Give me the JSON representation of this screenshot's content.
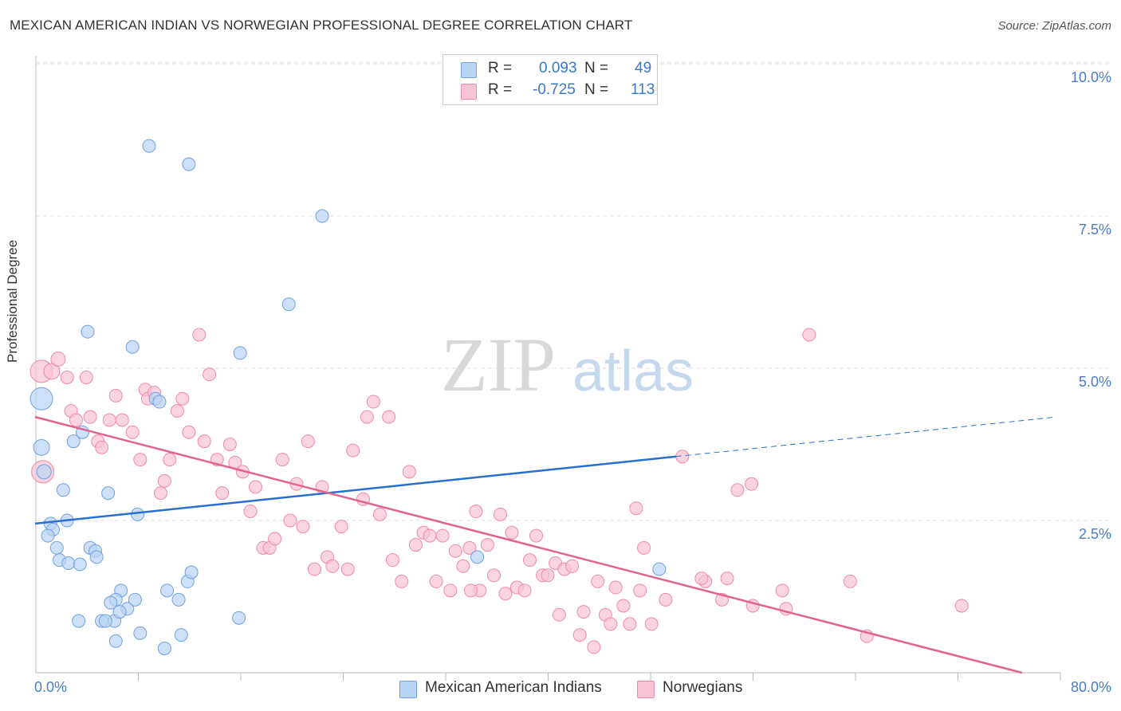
{
  "title": "MEXICAN AMERICAN INDIAN VS NORWEGIAN PROFESSIONAL DEGREE CORRELATION CHART",
  "source": "Source: ZipAtlas.com",
  "watermark": {
    "zip": "ZIP",
    "atlas": "atlas"
  },
  "legend": {
    "r_label": "R =",
    "n_label": "N =",
    "series1": {
      "r": "0.093",
      "n": "49",
      "color": "#a9c8f0"
    },
    "series2": {
      "r": "-0.725",
      "n": "113",
      "color": "#f6b8cc"
    }
  },
  "chart_data": {
    "type": "scatter",
    "title": "MEXICAN AMERICAN INDIAN VS NORWEGIAN PROFESSIONAL DEGREE CORRELATION CHART",
    "xlabel": "",
    "ylabel": "Professional Degree",
    "xlim": [
      0,
      80
    ],
    "ylim": [
      0,
      10.5
    ],
    "x_tick_labels": [
      "0.0%",
      "80.0%"
    ],
    "y_tick_labels": [
      "2.5%",
      "5.0%",
      "7.5%",
      "10.0%"
    ],
    "y_ticks": [
      2.5,
      5.0,
      7.5,
      10.0
    ],
    "grid": "horizontal dashed",
    "legend_position": "top-center",
    "series": [
      {
        "name": "Mexican American Indians",
        "color": "#6fa1e0",
        "fill": "#b9d3f3",
        "trend": {
          "x0": 0,
          "y0": 2.45,
          "x1": 50,
          "y1": 3.55,
          "dash_to_x": 80,
          "dash_to_y": 4.2
        },
        "points": [
          [
            0.5,
            4.5,
            14
          ],
          [
            0.5,
            3.7,
            10
          ],
          [
            0.7,
            3.3,
            9
          ],
          [
            1.2,
            2.45,
            8
          ],
          [
            1.4,
            2.35,
            8
          ],
          [
            1.0,
            2.25,
            8
          ],
          [
            1.7,
            2.05,
            8
          ],
          [
            1.9,
            1.85,
            8
          ],
          [
            2.6,
            1.8,
            8
          ],
          [
            3.5,
            1.78,
            8
          ],
          [
            2.2,
            3.0,
            8
          ],
          [
            2.5,
            2.5,
            8
          ],
          [
            3.0,
            3.8,
            8
          ],
          [
            3.7,
            3.95,
            8
          ],
          [
            4.1,
            5.6,
            8
          ],
          [
            4.3,
            2.05,
            8
          ],
          [
            4.7,
            2.0,
            8
          ],
          [
            4.8,
            1.9,
            8
          ],
          [
            5.7,
            2.95,
            8
          ],
          [
            6.7,
            1.35,
            8
          ],
          [
            6.3,
            1.2,
            8
          ],
          [
            5.9,
            1.15,
            8
          ],
          [
            6.2,
            0.85,
            8
          ],
          [
            7.2,
            1.05,
            8
          ],
          [
            7.8,
            1.2,
            8
          ],
          [
            8.2,
            0.65,
            8
          ],
          [
            8.0,
            2.6,
            8
          ],
          [
            7.6,
            5.35,
            8
          ],
          [
            8.9,
            8.65,
            8
          ],
          [
            9.4,
            4.5,
            8
          ],
          [
            9.7,
            4.45,
            8
          ],
          [
            10.3,
            1.35,
            8
          ],
          [
            11.2,
            1.2,
            8
          ],
          [
            11.4,
            0.62,
            8
          ],
          [
            11.9,
            1.5,
            8
          ],
          [
            12.2,
            1.65,
            8
          ],
          [
            12.0,
            8.35,
            8
          ],
          [
            16.0,
            5.25,
            8
          ],
          [
            15.9,
            0.9,
            8
          ],
          [
            19.8,
            6.05,
            8
          ],
          [
            22.4,
            7.5,
            8
          ],
          [
            34.5,
            1.9,
            8
          ],
          [
            48.7,
            1.7,
            8
          ],
          [
            3.4,
            0.85,
            8
          ],
          [
            5.2,
            0.85,
            8
          ],
          [
            5.5,
            0.85,
            8
          ],
          [
            6.3,
            0.52,
            8
          ],
          [
            10.1,
            0.4,
            8
          ],
          [
            6.6,
            1.0,
            8
          ]
        ]
      },
      {
        "name": "Norwegians",
        "color": "#ee8aaa",
        "fill": "#f8c3d4",
        "trend": {
          "x0": 0,
          "y0": 4.2,
          "x1": 77,
          "y1": 0.0
        },
        "points": [
          [
            0.5,
            4.95,
            14
          ],
          [
            0.6,
            3.3,
            14
          ],
          [
            1.3,
            4.95,
            10
          ],
          [
            1.8,
            5.15,
            9
          ],
          [
            2.5,
            4.85,
            8
          ],
          [
            2.8,
            4.3,
            8
          ],
          [
            3.2,
            4.15,
            8
          ],
          [
            4.0,
            4.85,
            8
          ],
          [
            4.3,
            4.2,
            8
          ],
          [
            4.9,
            3.8,
            8
          ],
          [
            5.2,
            3.7,
            8
          ],
          [
            5.8,
            4.15,
            8
          ],
          [
            6.3,
            4.55,
            8
          ],
          [
            6.8,
            4.15,
            8
          ],
          [
            7.6,
            3.95,
            8
          ],
          [
            8.2,
            3.5,
            8
          ],
          [
            8.6,
            4.65,
            8
          ],
          [
            8.8,
            4.5,
            8
          ],
          [
            9.3,
            4.6,
            8
          ],
          [
            9.8,
            2.95,
            8
          ],
          [
            10.1,
            3.15,
            8
          ],
          [
            10.5,
            3.5,
            8
          ],
          [
            11.1,
            4.3,
            8
          ],
          [
            11.5,
            4.5,
            8
          ],
          [
            12.0,
            3.95,
            8
          ],
          [
            12.8,
            5.55,
            8
          ],
          [
            13.2,
            3.8,
            8
          ],
          [
            13.6,
            4.9,
            8
          ],
          [
            14.2,
            3.5,
            8
          ],
          [
            14.6,
            2.95,
            8
          ],
          [
            15.2,
            3.75,
            8
          ],
          [
            15.6,
            3.45,
            8
          ],
          [
            16.2,
            3.3,
            8
          ],
          [
            16.8,
            2.65,
            8
          ],
          [
            17.2,
            3.05,
            8
          ],
          [
            17.8,
            2.05,
            8
          ],
          [
            18.3,
            2.05,
            8
          ],
          [
            18.7,
            2.2,
            8
          ],
          [
            19.3,
            3.5,
            8
          ],
          [
            19.9,
            2.5,
            8
          ],
          [
            20.4,
            3.1,
            8
          ],
          [
            20.9,
            2.4,
            8
          ],
          [
            21.3,
            3.8,
            8
          ],
          [
            21.8,
            1.7,
            8
          ],
          [
            22.4,
            3.05,
            8
          ],
          [
            22.8,
            1.9,
            8
          ],
          [
            23.2,
            1.75,
            8
          ],
          [
            23.9,
            2.4,
            8
          ],
          [
            24.4,
            1.7,
            8
          ],
          [
            24.8,
            3.65,
            8
          ],
          [
            25.6,
            2.85,
            8
          ],
          [
            25.9,
            4.2,
            8
          ],
          [
            26.4,
            4.45,
            8
          ],
          [
            26.9,
            2.6,
            8
          ],
          [
            27.6,
            4.2,
            8
          ],
          [
            27.9,
            1.85,
            8
          ],
          [
            28.6,
            1.5,
            8
          ],
          [
            29.2,
            3.3,
            8
          ],
          [
            29.7,
            2.1,
            8
          ],
          [
            30.3,
            2.3,
            8
          ],
          [
            30.8,
            2.25,
            8
          ],
          [
            31.3,
            1.5,
            8
          ],
          [
            31.8,
            2.25,
            8
          ],
          [
            32.4,
            1.35,
            8
          ],
          [
            32.8,
            2.0,
            8
          ],
          [
            33.4,
            1.75,
            8
          ],
          [
            33.9,
            2.05,
            8
          ],
          [
            34.4,
            2.65,
            8
          ],
          [
            34.7,
            1.35,
            8
          ],
          [
            35.3,
            2.1,
            8
          ],
          [
            35.8,
            1.6,
            8
          ],
          [
            36.3,
            2.6,
            8
          ],
          [
            36.7,
            1.3,
            8
          ],
          [
            37.2,
            2.3,
            8
          ],
          [
            37.6,
            1.4,
            8
          ],
          [
            38.2,
            1.35,
            8
          ],
          [
            38.6,
            1.85,
            8
          ],
          [
            39.1,
            2.25,
            8
          ],
          [
            39.6,
            1.6,
            8
          ],
          [
            40.0,
            1.6,
            8
          ],
          [
            40.6,
            1.8,
            8
          ],
          [
            40.9,
            0.95,
            8
          ],
          [
            41.3,
            1.7,
            8
          ],
          [
            41.9,
            1.75,
            8
          ],
          [
            42.5,
            0.62,
            8
          ],
          [
            42.8,
            1.0,
            8
          ],
          [
            43.6,
            0.42,
            8
          ],
          [
            43.9,
            1.5,
            8
          ],
          [
            44.5,
            0.95,
            8
          ],
          [
            44.9,
            0.8,
            8
          ],
          [
            45.3,
            1.4,
            8
          ],
          [
            45.9,
            1.1,
            8
          ],
          [
            46.4,
            0.8,
            8
          ],
          [
            46.9,
            2.7,
            8
          ],
          [
            47.2,
            1.35,
            8
          ],
          [
            47.5,
            2.05,
            8
          ],
          [
            48.1,
            0.8,
            8
          ],
          [
            49.2,
            1.2,
            8
          ],
          [
            50.5,
            3.55,
            8
          ],
          [
            52.3,
            1.5,
            8
          ],
          [
            53.6,
            1.2,
            8
          ],
          [
            54.0,
            1.55,
            8
          ],
          [
            54.8,
            3.0,
            8
          ],
          [
            55.9,
            3.1,
            8
          ],
          [
            58.6,
            1.05,
            8
          ],
          [
            58.3,
            1.35,
            8
          ],
          [
            60.4,
            5.55,
            8
          ],
          [
            63.6,
            1.5,
            8
          ],
          [
            64.9,
            0.6,
            8
          ],
          [
            72.3,
            1.1,
            8
          ],
          [
            56.0,
            1.1,
            8
          ],
          [
            52.0,
            1.55,
            8
          ],
          [
            34.0,
            1.35,
            8
          ]
        ]
      }
    ]
  },
  "legend_bottom": {
    "series1": "Mexican American Indians",
    "series2": "Norwegians"
  },
  "axis": {
    "ylabel": "Professional Degree",
    "x_min_label": "0.0%",
    "x_max_label": "80.0%",
    "y_labels": [
      "2.5%",
      "5.0%",
      "7.5%",
      "10.0%"
    ]
  }
}
